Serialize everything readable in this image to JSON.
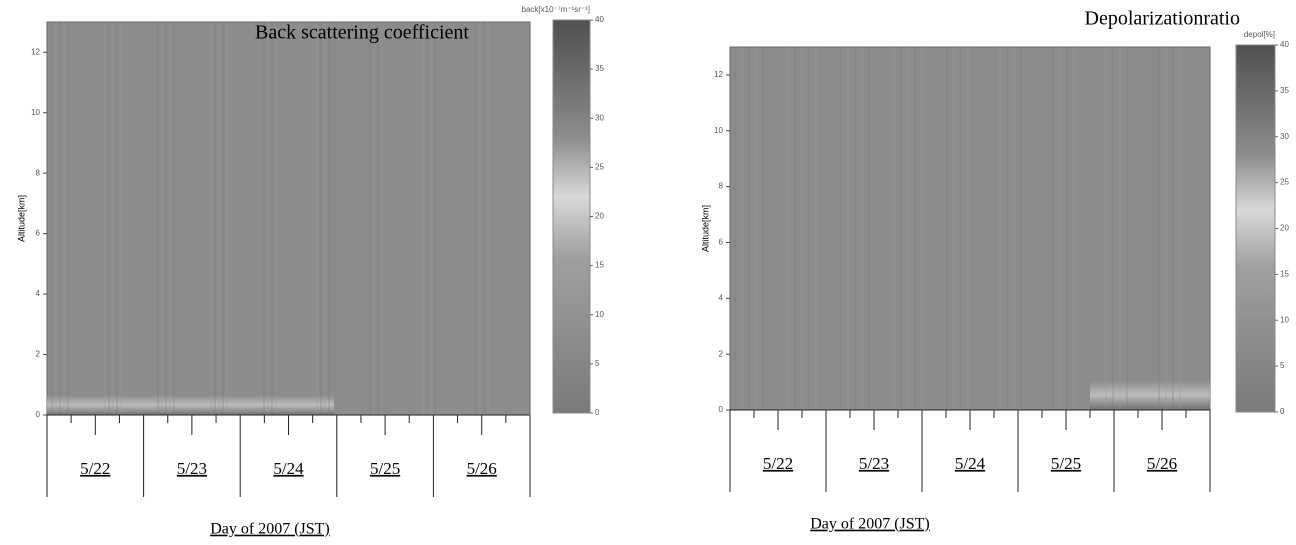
{
  "chart_data": [
    {
      "type": "heatmap",
      "title": "Back scattering coefficient",
      "y_label": "Altitude[km]",
      "x_label": "Day of 2007 (JST)",
      "categories": [
        "5/22",
        "5/23",
        "5/24",
        "5/25",
        "5/26"
      ],
      "ylim": [
        0,
        13
      ],
      "yticks": [
        0,
        2,
        4,
        6,
        8,
        10,
        12
      ],
      "colorbar": {
        "label": "back[x10⁻⁷m⁻¹sr⁻¹]",
        "lim": [
          0,
          40
        ],
        "ticks": [
          0,
          5,
          10,
          15,
          20,
          25,
          30,
          35,
          40
        ]
      }
    },
    {
      "type": "heatmap",
      "title": "Depolarizationratio",
      "y_label": "Altitude[km]",
      "x_label": "Day of 2007 (JST)",
      "categories": [
        "5/22",
        "5/23",
        "5/24",
        "5/25",
        "5/26"
      ],
      "ylim": [
        0,
        13
      ],
      "yticks": [
        0,
        2,
        4,
        6,
        8,
        10,
        12
      ],
      "colorbar": {
        "label": "depol[%]",
        "lim": [
          0,
          40
        ],
        "ticks": [
          0,
          5,
          10,
          15,
          20,
          25,
          30,
          35,
          40
        ]
      }
    }
  ]
}
